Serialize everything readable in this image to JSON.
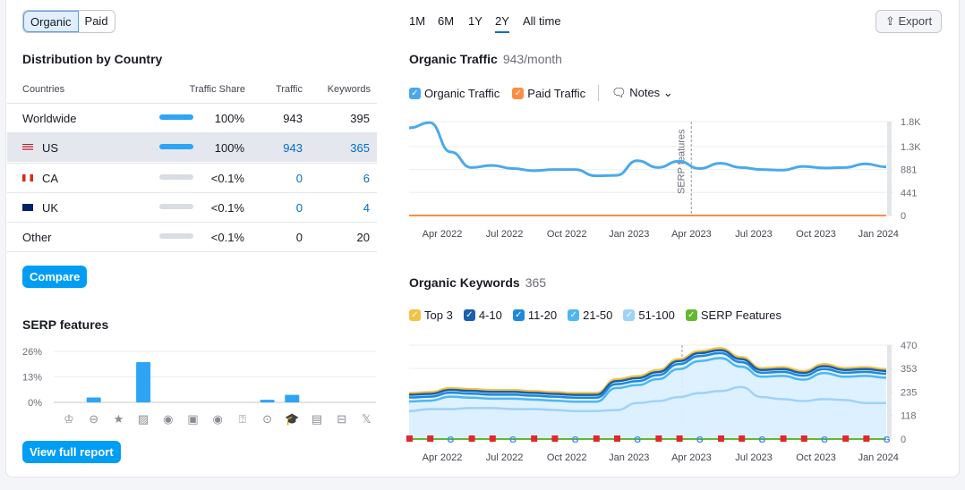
{
  "toggle": {
    "organic": "Organic",
    "paid": "Paid"
  },
  "time_ranges": [
    "1M",
    "6M",
    "1Y",
    "2Y",
    "All time"
  ],
  "time_selected": "2Y",
  "export_label": "Export",
  "distribution": {
    "title": "Distribution by Country",
    "headers": [
      "Countries",
      "Traffic Share",
      "Traffic",
      "Keywords"
    ],
    "rows": [
      {
        "country": "Worldwide",
        "flag": "",
        "share": "100%",
        "share_value": 100,
        "traffic": "943",
        "keywords": "395",
        "link": false
      },
      {
        "country": "US",
        "flag": "us-flag",
        "share": "100%",
        "share_value": 100,
        "traffic": "943",
        "keywords": "365",
        "link": true,
        "selected": true
      },
      {
        "country": "CA",
        "flag": "ca-flag",
        "share": "<0.1%",
        "share_value": 0.05,
        "traffic": "0",
        "keywords": "6",
        "link": true
      },
      {
        "country": "UK",
        "flag": "uk-flag",
        "share": "<0.1%",
        "share_value": 0.05,
        "traffic": "0",
        "keywords": "4",
        "link": true
      },
      {
        "country": "Other",
        "flag": "",
        "share": "<0.1%",
        "share_value": 0.05,
        "traffic": "0",
        "keywords": "20",
        "link": false
      }
    ],
    "compare_label": "Compare"
  },
  "serp": {
    "title": "SERP features",
    "view_label": "View full report"
  },
  "traffic_panel": {
    "title": "Organic Traffic",
    "value": "943/month",
    "legend": [
      "Organic Traffic",
      "Paid Traffic"
    ],
    "notes_label": "Notes"
  },
  "keywords_panel": {
    "title": "Organic Keywords",
    "value": "365",
    "legend": [
      "Top 3",
      "4-10",
      "11-20",
      "21-50",
      "51-100",
      "SERP Features"
    ]
  },
  "colors": {
    "accent": "#009df5",
    "organic": "#4aa9eb",
    "paid": "#ff8c43",
    "top3": "#f5c343",
    "k4_10": "#1a5fab",
    "k11_20": "#1e8ad9",
    "k21_50": "#4eb6f0",
    "k51_100": "#9fd2f8",
    "serp": "#63b831"
  },
  "chart_data": [
    {
      "type": "bar",
      "title": "SERP features",
      "ylim": [
        0,
        26
      ],
      "yticks": [
        "26%",
        "13%",
        "0%"
      ],
      "categories": [
        "crown-icon",
        "link-icon",
        "star-icon",
        "image-icon",
        "video-icon",
        "video-preview-icon",
        "play-icon",
        "faq-icon",
        "location-icon",
        "graduation-cap-icon",
        "news-icon",
        "briefcase-icon",
        "x-icon"
      ],
      "values": [
        0,
        2.5,
        0,
        20.5,
        0,
        0,
        0,
        0,
        1.3,
        3.8,
        0,
        0,
        0
      ]
    },
    {
      "type": "line",
      "title": "Organic Traffic",
      "ylim": [
        0,
        1800
      ],
      "yticks": [
        "1.8K",
        "1.3K",
        "881",
        "441",
        "0"
      ],
      "ytick_values": [
        1800,
        1322,
        881,
        441,
        0
      ],
      "xticks": [
        "Apr 2022",
        "Jul 2022",
        "Oct 2022",
        "Jan 2023",
        "Apr 2023",
        "Jul 2023",
        "Oct 2023",
        "Jan 2024"
      ],
      "x": [
        "2022-02",
        "2022-03",
        "2022-04",
        "2022-05",
        "2022-06",
        "2022-07",
        "2022-08",
        "2022-09",
        "2022-10",
        "2022-11",
        "2022-12",
        "2023-01",
        "2023-02",
        "2023-03",
        "2023-04",
        "2023-05",
        "2023-06",
        "2023-07",
        "2023-08",
        "2023-09",
        "2023-10",
        "2023-11",
        "2023-12",
        "2024-01"
      ],
      "annotation": "SERP features",
      "annotation_x": "2023-03",
      "series": [
        {
          "name": "Organic Traffic",
          "values": [
            1680,
            1780,
            1220,
            920,
            960,
            900,
            860,
            880,
            880,
            760,
            770,
            1050,
            920,
            1040,
            900,
            1000,
            920,
            880,
            870,
            940,
            910,
            920,
            990,
            930
          ]
        },
        {
          "name": "Paid Traffic",
          "values": [
            0,
            0,
            0,
            0,
            0,
            0,
            0,
            0,
            0,
            0,
            0,
            0,
            0,
            0,
            0,
            0,
            0,
            0,
            0,
            0,
            0,
            0,
            0,
            0
          ]
        }
      ]
    },
    {
      "type": "area",
      "title": "Organic Keywords",
      "ylim": [
        0,
        470
      ],
      "yticks": [
        "470",
        "353",
        "235",
        "118",
        "0"
      ],
      "ytick_values": [
        470,
        353,
        235,
        118,
        0
      ],
      "xticks": [
        "Apr 2022",
        "Jul 2022",
        "Oct 2022",
        "Jan 2023",
        "Apr 2023",
        "Jul 2023",
        "Oct 2023",
        "Jan 2024"
      ],
      "series": [
        {
          "name": "Top 3",
          "values": [
            230,
            235,
            255,
            250,
            245,
            245,
            240,
            235,
            230,
            230,
            300,
            315,
            345,
            400,
            440,
            455,
            410,
            355,
            360,
            340,
            375,
            355,
            360,
            350
          ]
        },
        {
          "name": "4-10",
          "values": [
            222,
            226,
            246,
            241,
            236,
            236,
            231,
            226,
            221,
            221,
            290,
            305,
            335,
            390,
            430,
            445,
            400,
            346,
            350,
            331,
            365,
            346,
            350,
            341
          ]
        },
        {
          "name": "11-20",
          "values": [
            208,
            212,
            232,
            227,
            222,
            222,
            217,
            212,
            207,
            207,
            275,
            290,
            320,
            375,
            415,
            430,
            385,
            332,
            336,
            317,
            350,
            332,
            336,
            327
          ]
        },
        {
          "name": "21-50",
          "values": [
            188,
            192,
            212,
            207,
            202,
            202,
            197,
            192,
            187,
            187,
            255,
            270,
            300,
            350,
            390,
            405,
            362,
            312,
            316,
            297,
            330,
            312,
            316,
            307
          ]
        },
        {
          "name": "51-100",
          "values": [
            140,
            150,
            150,
            155,
            155,
            150,
            150,
            145,
            140,
            140,
            145,
            180,
            190,
            210,
            230,
            240,
            260,
            210,
            200,
            190,
            200,
            195,
            180,
            180
          ]
        }
      ]
    }
  ]
}
